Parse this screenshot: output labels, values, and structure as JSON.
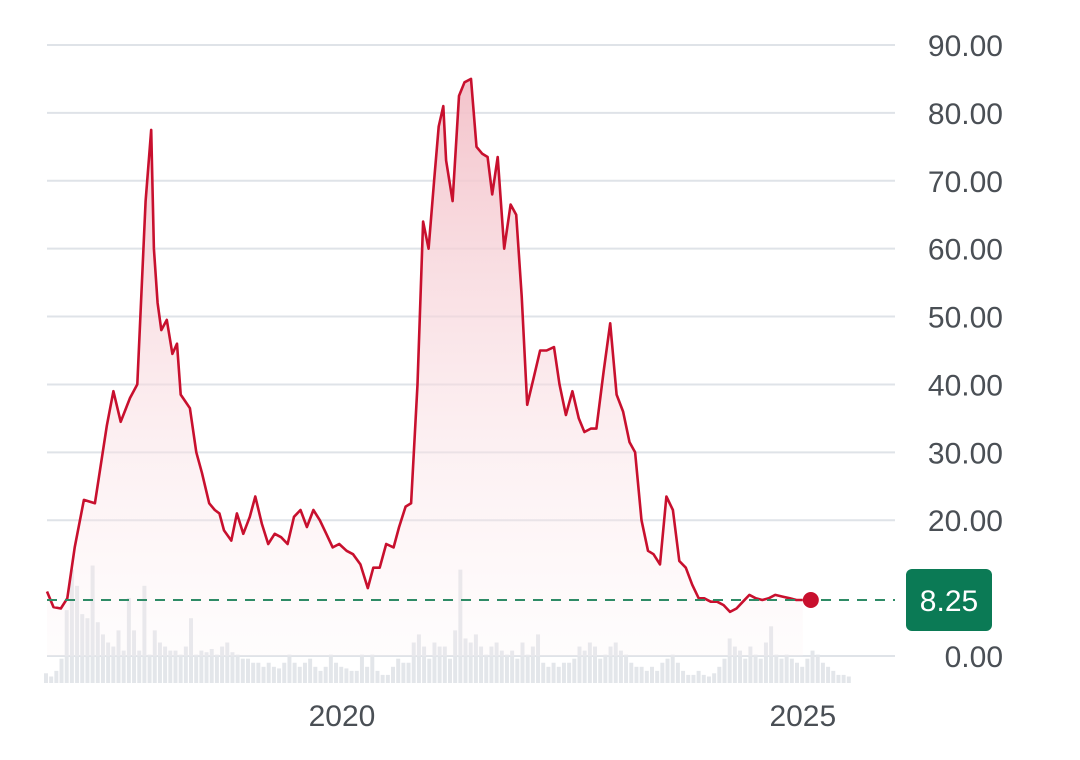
{
  "chart_data": {
    "type": "line",
    "title": "",
    "xlabel": "",
    "ylabel": "",
    "ylim": [
      0,
      90
    ],
    "xlim": [
      2016.8,
      2026
    ],
    "y_ticks": [
      "90.00",
      "80.00",
      "70.00",
      "60.00",
      "50.00",
      "40.00",
      "30.00",
      "20.00",
      "0.00"
    ],
    "x_ticks": [
      {
        "label": "2020",
        "value": 2020
      },
      {
        "label": "2025",
        "value": 2025
      }
    ],
    "grid": true,
    "legend": "none",
    "current_value": 8.25,
    "current_label": "8.25",
    "colors": {
      "line": "#c8102e",
      "area_top": "#f4c5cc",
      "reference": "#2e8b66",
      "badge": "#0b7a55",
      "volume": "#e3e6ea",
      "grid": "#dfe3e8"
    },
    "series": [
      {
        "x": [
          2016.8,
          2016.87,
          2016.95,
          2017.02,
          2017.1,
          2017.2,
          2017.32,
          2017.45,
          2017.52,
          2017.6,
          2017.7,
          2017.78,
          2017.87,
          2017.93,
          2017.96,
          2018.0,
          2018.04,
          2018.1,
          2018.16,
          2018.21,
          2018.25,
          2018.3,
          2018.35,
          2018.42,
          2018.48,
          2018.56,
          2018.62,
          2018.67,
          2018.72,
          2018.8,
          2018.86,
          2018.93,
          2019.0,
          2019.06,
          2019.13,
          2019.2,
          2019.27,
          2019.34,
          2019.41,
          2019.48,
          2019.55,
          2019.62,
          2019.69,
          2019.76,
          2019.83,
          2019.9,
          2019.97,
          2020.05,
          2020.12,
          2020.2,
          2020.28,
          2020.34,
          2020.41,
          2020.48,
          2020.56,
          2020.62,
          2020.69,
          2020.75,
          2020.82,
          2020.88,
          2020.94,
          2021.0,
          2021.05,
          2021.1,
          2021.13,
          2021.2,
          2021.27,
          2021.33,
          2021.4,
          2021.46,
          2021.52,
          2021.58,
          2021.63,
          2021.69,
          2021.76,
          2021.83,
          2021.89,
          2021.95,
          2022.01,
          2022.08,
          2022.15,
          2022.22,
          2022.3,
          2022.36,
          2022.43,
          2022.5,
          2022.57,
          2022.63,
          2022.7,
          2022.76,
          2022.84,
          2022.91,
          2022.98,
          2023.05,
          2023.12,
          2023.18,
          2023.25,
          2023.32,
          2023.38,
          2023.45,
          2023.52,
          2023.59,
          2023.66,
          2023.73,
          2023.8,
          2023.87,
          2023.93,
          2024.0,
          2024.07,
          2024.14,
          2024.21,
          2024.28,
          2024.35,
          2024.42,
          2024.49,
          2024.56,
          2024.63,
          2024.7,
          2024.78,
          2024.86,
          2024.93,
          2025.0
        ],
        "values": [
          9.5,
          7.2,
          7.0,
          8.5,
          16.0,
          23.0,
          22.5,
          34.0,
          39.0,
          34.5,
          38.0,
          40.0,
          67.0,
          77.5,
          60.0,
          52.0,
          48.0,
          49.5,
          44.5,
          46.0,
          38.5,
          37.5,
          36.5,
          30.0,
          27.0,
          22.5,
          21.5,
          21.0,
          18.5,
          17.0,
          21.0,
          18.0,
          20.5,
          23.5,
          19.5,
          16.5,
          18.0,
          17.5,
          16.5,
          20.5,
          21.5,
          19.0,
          21.5,
          20.0,
          18.0,
          16.0,
          16.5,
          15.5,
          15.0,
          13.5,
          10.0,
          13.0,
          13.0,
          16.5,
          16.0,
          19.0,
          22.0,
          22.5,
          40.0,
          64.0,
          60.0,
          70.0,
          78.0,
          81.0,
          73.0,
          67.0,
          82.5,
          84.5,
          85.0,
          75.0,
          74.0,
          73.5,
          68.0,
          73.5,
          60.0,
          66.5,
          65.0,
          53.0,
          37.0,
          41.0,
          45.0,
          45.0,
          45.5,
          40.0,
          35.5,
          39.0,
          35.0,
          33.0,
          33.5,
          33.5,
          42.0,
          49.0,
          38.5,
          36.0,
          31.5,
          30.0,
          20.0,
          15.5,
          15.0,
          13.5,
          23.5,
          21.5,
          14.0,
          13.0,
          10.5,
          8.5,
          8.5,
          8.0,
          8.0,
          7.5,
          6.5,
          7.0,
          8.0,
          9.0,
          8.5,
          8.25,
          8.5,
          9.0,
          8.75,
          8.5,
          8.25,
          8.25
        ]
      }
    ],
    "volume": [
      1.2,
      0.8,
      1.5,
      3.0,
      9.0,
      14.0,
      12.0,
      8.5,
      8.0,
      14.5,
      7.5,
      6.0,
      5.0,
      4.5,
      6.5,
      4.0,
      10.5,
      6.5,
      4.0,
      12.0,
      3.5,
      6.5,
      5.0,
      4.5,
      4.0,
      4.0,
      3.5,
      4.5,
      8.0,
      3.5,
      4.0,
      3.8,
      4.2,
      3.5,
      4.5,
      5.0,
      3.8,
      3.5,
      3.0,
      3.0,
      2.5,
      2.5,
      2.0,
      2.5,
      2.0,
      1.8,
      2.5,
      3.5,
      2.5,
      2.0,
      2.5,
      3.0,
      2.0,
      1.5,
      2.0,
      3.5,
      2.5,
      2.0,
      1.8,
      1.5,
      1.5,
      3.5,
      2.0,
      3.5,
      1.5,
      1.0,
      1.0,
      2.0,
      3.0,
      2.5,
      2.5,
      5.0,
      6.0,
      4.5,
      3.0,
      5.0,
      4.5,
      4.5,
      3.0,
      6.5,
      14.0,
      5.5,
      5.0,
      6.0,
      4.5,
      3.5,
      4.5,
      5.0,
      4.0,
      3.5,
      4.0,
      3.0,
      5.0,
      3.5,
      4.5,
      6.0,
      2.5,
      2.0,
      2.5,
      2.0,
      2.5,
      2.5,
      3.0,
      4.5,
      4.0,
      5.0,
      4.5,
      3.0,
      3.5,
      4.5,
      5.0,
      4.0,
      3.5,
      2.5,
      2.0,
      2.0,
      1.5,
      2.0,
      1.5,
      2.5,
      3.0,
      3.5,
      2.5,
      1.5,
      1.0,
      1.0,
      1.5,
      1.0,
      0.8,
      1.2,
      2.0,
      3.0,
      5.5,
      4.5,
      4.0,
      3.0,
      4.5,
      3.5,
      3.0,
      5.0,
      7.0,
      3.5,
      3.0,
      3.5,
      3.0,
      2.5,
      2.0,
      3.0,
      4.0,
      3.5,
      2.5,
      2.0,
      1.5,
      1.0,
      1.0,
      0.8
    ]
  }
}
